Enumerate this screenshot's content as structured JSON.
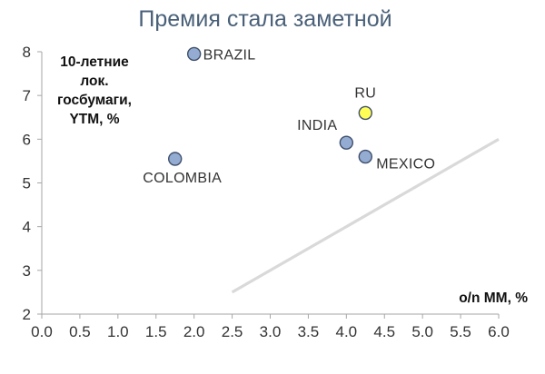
{
  "chart_data": {
    "type": "scatter",
    "title": "Премия стала заметной",
    "ylabel_lines": [
      "10-летние",
      "лок.",
      "госбумаги,",
      "YTM, %"
    ],
    "xlabel": "o/n MM, %",
    "xlim": [
      0.0,
      6.0
    ],
    "ylim": [
      2,
      8
    ],
    "x_ticks": [
      "0.0",
      "0.5",
      "1.0",
      "1.5",
      "2.0",
      "2.5",
      "3.0",
      "3.5",
      "4.0",
      "4.5",
      "5.0",
      "5.5",
      "6.0"
    ],
    "y_ticks": [
      "2",
      "3",
      "4",
      "5",
      "6",
      "7",
      "8"
    ],
    "points": [
      {
        "label": "BRAZIL",
        "x": 2.0,
        "y": 7.95,
        "color": "#95acd2"
      },
      {
        "label": "COLOMBIA",
        "x": 1.75,
        "y": 5.55,
        "color": "#95acd2"
      },
      {
        "label": "INDIA",
        "x": 4.0,
        "y": 5.92,
        "color": "#95acd2"
      },
      {
        "label": "MEXICO",
        "x": 4.25,
        "y": 5.6,
        "color": "#95acd2"
      },
      {
        "label": "RU",
        "x": 4.25,
        "y": 6.6,
        "color": "#ffff55"
      }
    ],
    "reference_line": {
      "x": [
        2.5,
        6.0
      ],
      "y": [
        2.5,
        6.0
      ],
      "color": "#d9d9d9"
    },
    "grid": false,
    "axis_color": "#a6a6a6",
    "marker_edge_color": "#3f4f6b"
  }
}
